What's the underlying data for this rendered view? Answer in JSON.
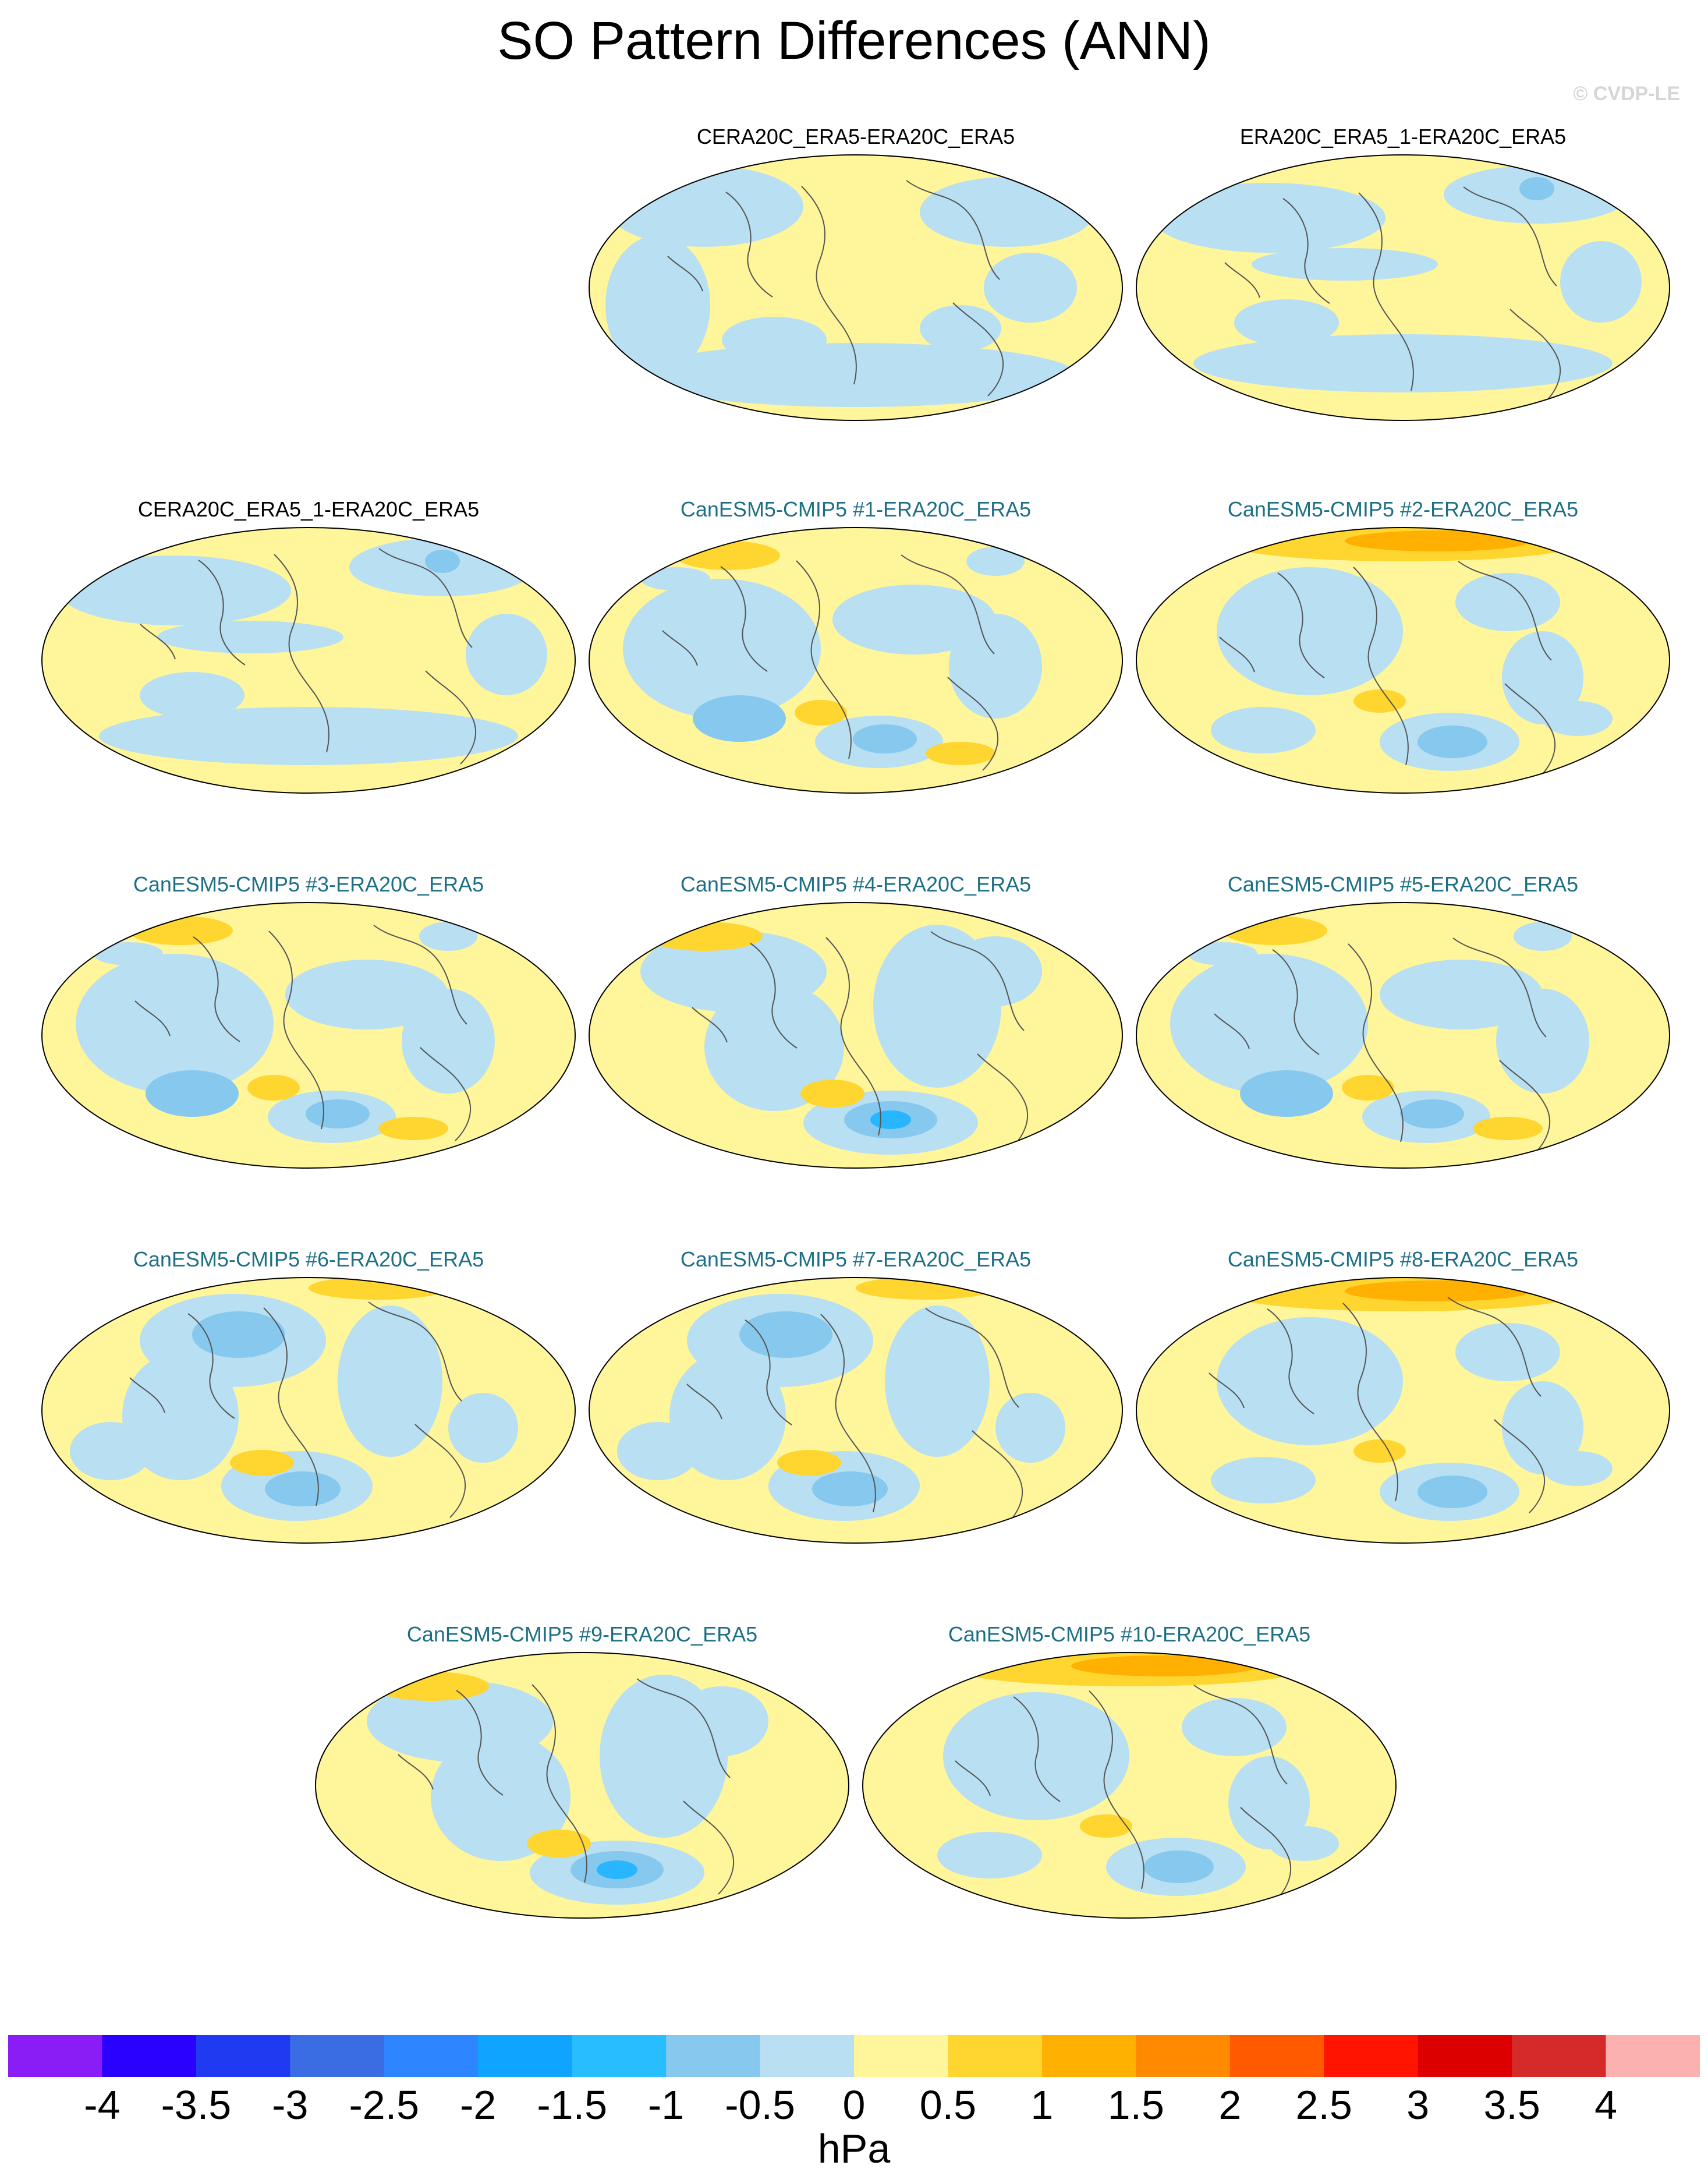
{
  "figure": {
    "title": "SO Pattern Differences (ANN)",
    "watermark": "© CVDP-LE",
    "units": "hPa"
  },
  "colors": {
    "ocean_base": "#fff59b",
    "neg_050": "#b8dff2",
    "neg_100": "#86c8ee",
    "neg_150": "#27b6ff",
    "pos_050": "#fff59b",
    "pos_100": "#ffd530",
    "pos_150": "#ffb000",
    "coast": "#555555",
    "title_black": "#000000",
    "title_teal": "#1d6f86"
  },
  "panels": [
    {
      "title": "CERA20C_ERA5-ERA20C_ERA5",
      "color": "k",
      "pattern": "a"
    },
    {
      "title": "ERA20C_ERA5_1-ERA20C_ERA5",
      "color": "k",
      "pattern": "b"
    },
    {
      "title": "CERA20C_ERA5_1-ERA20C_ERA5",
      "color": "k",
      "pattern": "b"
    },
    {
      "title": "CanESM5-CMIP5 #1-ERA20C_ERA5",
      "color": "t",
      "pattern": "c"
    },
    {
      "title": "CanESM5-CMIP5 #2-ERA20C_ERA5",
      "color": "t",
      "pattern": "d"
    },
    {
      "title": "CanESM5-CMIP5 #3-ERA20C_ERA5",
      "color": "t",
      "pattern": "c"
    },
    {
      "title": "CanESM5-CMIP5 #4-ERA20C_ERA5",
      "color": "t",
      "pattern": "e"
    },
    {
      "title": "CanESM5-CMIP5 #5-ERA20C_ERA5",
      "color": "t",
      "pattern": "c"
    },
    {
      "title": "CanESM5-CMIP5 #6-ERA20C_ERA5",
      "color": "t",
      "pattern": "f"
    },
    {
      "title": "CanESM5-CMIP5 #7-ERA20C_ERA5",
      "color": "t",
      "pattern": "f"
    },
    {
      "title": "CanESM5-CMIP5 #8-ERA20C_ERA5",
      "color": "t",
      "pattern": "d"
    },
    {
      "title": "CanESM5-CMIP5 #9-ERA20C_ERA5",
      "color": "t",
      "pattern": "e"
    },
    {
      "title": "CanESM5-CMIP5 #10-ERA20C_ERA5",
      "color": "t",
      "pattern": "d"
    }
  ],
  "colorbar": {
    "colors": [
      "#8a1cf5",
      "#2a00ff",
      "#1f3af0",
      "#3a6ce3",
      "#2d86ff",
      "#0ea4ff",
      "#27bdff",
      "#86c8ee",
      "#b8dff2",
      "#fff59b",
      "#ffd530",
      "#ffb000",
      "#ff8a00",
      "#ff5a00",
      "#ff1400",
      "#dc0000",
      "#d42a2a",
      "#fcb1b1"
    ],
    "ticks": [
      "-4",
      "-3.5",
      "-3",
      "-2.5",
      "-2",
      "-1.5",
      "-1",
      "-0.5",
      "0",
      "0.5",
      "1",
      "1.5",
      "2",
      "2.5",
      "3",
      "3.5",
      "4"
    ]
  }
}
